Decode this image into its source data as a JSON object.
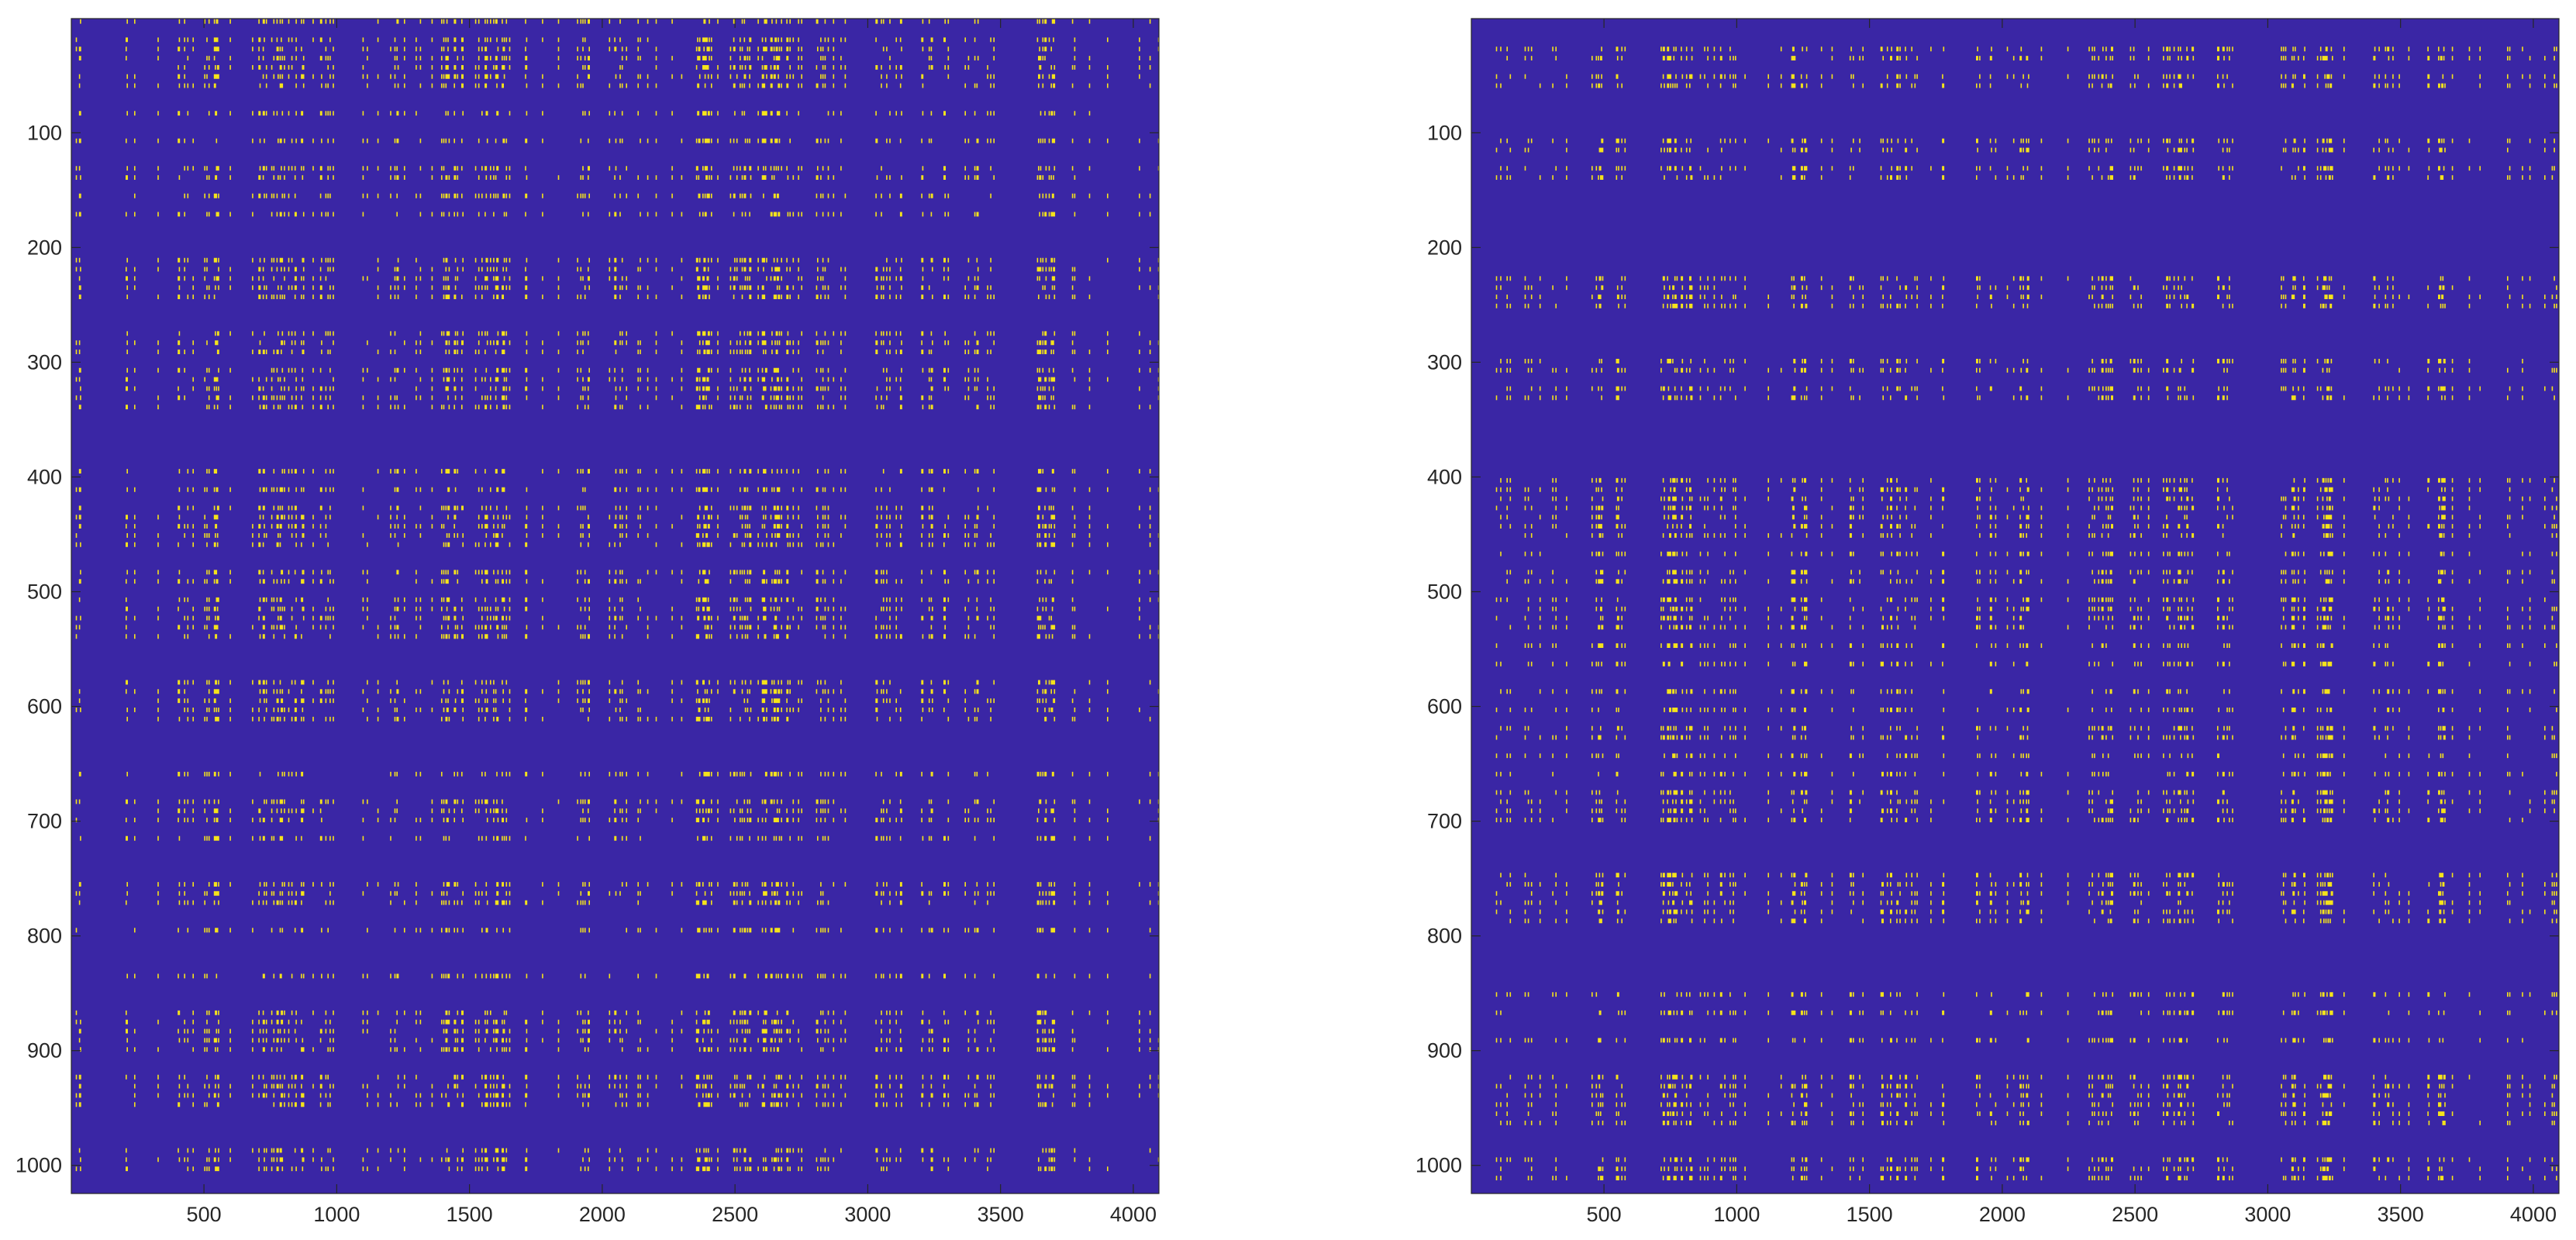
{
  "chart_data": [
    {
      "type": "heatmap",
      "title": "",
      "xlabel": "",
      "ylabel": "",
      "xlim": [
        0.5,
        4096.5
      ],
      "ylim": [
        0.5,
        1024.5
      ],
      "y_reversed": true,
      "grid": false,
      "legend": "none",
      "values_shown": "binary",
      "colormap": {
        "0": "#3a26a5",
        "1": "#f5e31b"
      },
      "xticks": [
        500,
        1000,
        1500,
        2000,
        2500,
        3000,
        3500,
        4000
      ],
      "xtick_labels": [
        "500",
        "1000",
        "1500",
        "2000",
        "2500",
        "3000",
        "3500",
        "4000"
      ],
      "yticks": [
        100,
        200,
        300,
        400,
        500,
        600,
        700,
        800,
        900,
        1000
      ],
      "ytick_labels": [
        "100",
        "200",
        "300",
        "400",
        "500",
        "600",
        "700",
        "800",
        "900",
        "1000"
      ],
      "dense_columns": [
        [
          200,
          220
        ],
        [
          400,
          460
        ],
        [
          500,
          560
        ],
        [
          700,
          880
        ],
        [
          930,
          1000
        ],
        [
          1200,
          1260
        ],
        [
          1400,
          1480
        ],
        [
          1520,
          1660
        ],
        [
          1900,
          1960
        ],
        [
          2040,
          2100
        ],
        [
          2320,
          2420
        ],
        [
          2480,
          2560
        ],
        [
          2600,
          2720
        ],
        [
          2800,
          2880
        ],
        [
          3040,
          3140
        ],
        [
          3180,
          3240
        ],
        [
          3400,
          3460
        ],
        [
          3640,
          3700
        ],
        [
          3900,
          3920
        ],
        [
          4060,
          4080
        ]
      ],
      "dense_rows": [
        [
          20,
          60
        ],
        [
          100,
          140
        ],
        [
          200,
          250
        ],
        [
          290,
          340
        ],
        [
          390,
          460
        ],
        [
          480,
          530
        ],
        [
          580,
          620
        ],
        [
          650,
          710
        ],
        [
          740,
          790
        ],
        [
          860,
          940
        ],
        [
          975,
          1010
        ]
      ],
      "seed": 7
    },
    {
      "type": "heatmap",
      "title": "",
      "xlabel": "",
      "ylabel": "",
      "xlim": [
        0.5,
        4096.5
      ],
      "ylim": [
        0.5,
        1024.5
      ],
      "y_reversed": true,
      "grid": false,
      "legend": "none",
      "values_shown": "binary",
      "colormap": {
        "0": "#3a26a5",
        "1": "#f5e31b"
      },
      "xticks": [
        500,
        1000,
        1500,
        2000,
        2500,
        3000,
        3500,
        4000
      ],
      "xtick_labels": [
        "500",
        "1000",
        "1500",
        "2000",
        "2500",
        "3000",
        "3500",
        "4000"
      ],
      "yticks": [
        100,
        200,
        300,
        400,
        500,
        600,
        700,
        800,
        900,
        1000
      ],
      "ytick_labels": [
        "100",
        "200",
        "300",
        "400",
        "500",
        "600",
        "700",
        "800",
        "900",
        "1000"
      ],
      "dense_columns": [
        [
          200,
          220
        ],
        [
          440,
          500
        ],
        [
          540,
          580
        ],
        [
          700,
          880
        ],
        [
          930,
          1000
        ],
        [
          1200,
          1260
        ],
        [
          1420,
          1500
        ],
        [
          1540,
          1640
        ],
        [
          1900,
          1960
        ],
        [
          2040,
          2100
        ],
        [
          2320,
          2420
        ],
        [
          2480,
          2560
        ],
        [
          2600,
          2720
        ],
        [
          2800,
          2880
        ],
        [
          3040,
          3140
        ],
        [
          3180,
          3240
        ],
        [
          3400,
          3460
        ],
        [
          3640,
          3700
        ],
        [
          3900,
          3920
        ],
        [
          4060,
          4080
        ]
      ],
      "dense_rows": [
        [
          20,
          60
        ],
        [
          100,
          140
        ],
        [
          200,
          250
        ],
        [
          290,
          340
        ],
        [
          390,
          460
        ],
        [
          480,
          530
        ],
        [
          580,
          620
        ],
        [
          650,
          710
        ],
        [
          740,
          790
        ],
        [
          860,
          940
        ],
        [
          975,
          1010
        ]
      ],
      "seed": 11
    }
  ]
}
